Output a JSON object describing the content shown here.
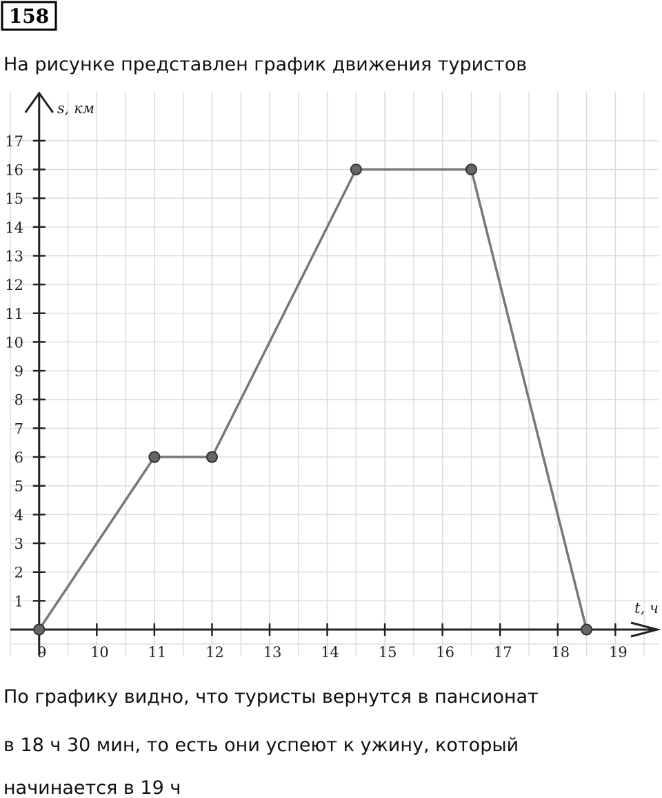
{
  "header": {
    "number": "158",
    "intro": "На рисунке представлен график движения туристов"
  },
  "chart_data": {
    "type": "line",
    "x_label": "t, ч",
    "y_label": "s, км",
    "x": [
      9,
      11,
      12,
      14.5,
      16.5,
      18.5
    ],
    "values": [
      0,
      6,
      6,
      16,
      16,
      0
    ],
    "color": "#777777",
    "marker_color": "#666666",
    "xlim": [
      8.5,
      19.75
    ],
    "ylim": [
      -0.9,
      18.7
    ],
    "xticks": [
      9,
      10,
      11,
      12,
      13,
      14,
      15,
      16,
      17,
      18,
      19
    ],
    "yticks": [
      1,
      2,
      3,
      4,
      5,
      6,
      7,
      8,
      9,
      10,
      11,
      12,
      13,
      14,
      15,
      16,
      17
    ],
    "grid": true
  },
  "answer": {
    "lines": [
      "По графику видно, что туристы вернутся в пансионат",
      "в 18 ч 30 мин, то есть они успеют к ужину, который",
      "начинается в 19 ч"
    ]
  }
}
